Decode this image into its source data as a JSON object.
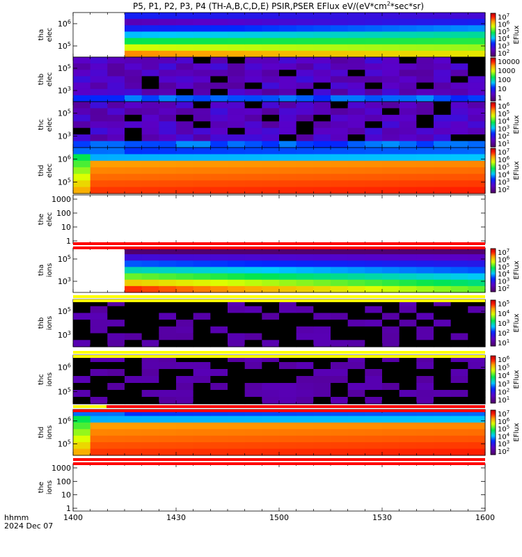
{
  "title": "P5, P1, P2, P3, P4 (TH-A,B,C,D,E) PSIR,PSER EFlux eV/(eV*cm",
  "title_sup": "2",
  "title_tail": "*sec*sr)",
  "time_axis": {
    "label_line1": "hhmm",
    "label_line2": "2024 Dec 07",
    "ticks": [
      "1400",
      "1430",
      "1500",
      "1530",
      "1600"
    ]
  },
  "colors": {
    "flag_red": "#ff0000",
    "flag_yellow": "#ffff00",
    "background": "#ffffff"
  },
  "chart_data": [
    {
      "type": "heatmap",
      "id": "tha-elec",
      "ylabel": [
        "tha",
        "elec"
      ],
      "yticks": [
        "10^6",
        "10^5"
      ],
      "colorbar": [
        "10^7",
        "10^6",
        "10^5",
        "10^4",
        "10^3",
        "10^2"
      ],
      "colorbar_label": "EFlux",
      "gap_until_col": 2,
      "pattern": "decay",
      "max_log": 7,
      "min_log": 2
    },
    {
      "type": "heatmap",
      "id": "thb-elec",
      "ylabel": [
        "thb",
        "elec"
      ],
      "yticks": [
        "10^5",
        "10^3"
      ],
      "colorbar": [
        "10000",
        "1000",
        "100",
        "10",
        "1"
      ],
      "colorbar_label": "",
      "pattern": "noise"
    },
    {
      "type": "heatmap",
      "id": "thc-elec",
      "ylabel": [
        "thc",
        "elec"
      ],
      "yticks": [
        "10^5",
        "10^3"
      ],
      "colorbar": [
        "10^6",
        "10^5",
        "10^4",
        "10^3",
        "10^2",
        "10^1"
      ],
      "colorbar_label": "EFlux",
      "pattern": "noise"
    },
    {
      "type": "heatmap",
      "id": "thd-elec",
      "ylabel": [
        "thd",
        "elec"
      ],
      "yticks": [
        "10^6",
        "10^5"
      ],
      "colorbar": [
        "10^7",
        "10^6",
        "10^5",
        "10^4",
        "10^3",
        "10^2"
      ],
      "colorbar_label": "EFlux",
      "pattern": "flat_red"
    },
    {
      "type": "line",
      "id": "the-elec",
      "ylabel": [
        "the",
        "elec"
      ],
      "yticks": [
        "1000",
        "100",
        "10",
        "1"
      ],
      "series": []
    },
    {
      "type": "heatmap",
      "id": "tha-ions",
      "ylabel": [
        "tha",
        "ions"
      ],
      "yticks": [
        "10^5",
        "10^3"
      ],
      "colorbar": [
        "10^7",
        "10^6",
        "10^5",
        "10^4",
        "10^3",
        "10^2"
      ],
      "colorbar_label": "EFlux",
      "gap_until_col": 2,
      "pattern": "decay_ion"
    },
    {
      "type": "heatmap",
      "id": "thb-ions",
      "ylabel": [
        "thb",
        "ions"
      ],
      "yticks": [
        "10^5",
        "10^3"
      ],
      "colorbar": [
        "10^5",
        "10^4",
        "10^3",
        "10^2",
        "10^1"
      ],
      "colorbar_label": "EFlux",
      "pattern": "noise_sparse"
    },
    {
      "type": "heatmap",
      "id": "thc-ions",
      "ylabel": [
        "thc",
        "ions"
      ],
      "yticks": [
        "10^6",
        "10^5"
      ],
      "colorbar": [
        "10^6",
        "10^5",
        "10^4",
        "10^3",
        "10^2",
        "10^1"
      ],
      "colorbar_label": "EFlux",
      "pattern": "noise_sparse"
    },
    {
      "type": "heatmap",
      "id": "thd-ions",
      "ylabel": [
        "thd",
        "ions"
      ],
      "yticks": [
        "10^6",
        "10^5"
      ],
      "colorbar": [
        "10^7",
        "10^6",
        "10^5",
        "10^4",
        "10^3",
        "10^2"
      ],
      "colorbar_label": "EFlux",
      "pattern": "flat_red_ion"
    },
    {
      "type": "line",
      "id": "the-ions",
      "ylabel": [
        "the",
        "ions"
      ],
      "yticks": [
        "1000",
        "100",
        "10",
        "1"
      ],
      "series": []
    }
  ]
}
